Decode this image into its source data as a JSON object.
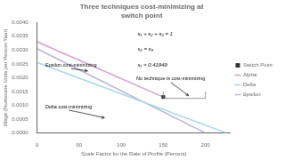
{
  "chart_data": {
    "type": "line",
    "title": "Three techniques cost-minimizing at\nswitch point",
    "xlabel": "Scale Factor for the Rate of Profits (Percent)",
    "ylabel": "Wage (Numeraire Units per Person-Year)",
    "annotations": [
      "s₁ + s₂ + s₃ = 1",
      "s₂ = s₃",
      "s₁ ≈ 0.41949",
      "Epsilon cost-minimizing",
      "Delta cost-minimizing",
      "No technique is cost-minimizing"
    ],
    "series": [
      {
        "name": "Alpha",
        "color": "#d4a0c8",
        "x": [
          0,
          150
        ],
        "values": [
          0.0033,
          0.0013
        ]
      },
      {
        "name": "Delta",
        "color": "#a8d4e8",
        "x": [
          0,
          225
        ],
        "values": [
          0.00255,
          0
        ]
      },
      {
        "name": "Epsilon",
        "color": "#b8b4d8",
        "x": [
          0,
          200
        ],
        "values": [
          0.00305,
          0
        ]
      },
      {
        "name": "Switch Point",
        "type": "scatter",
        "marker": "square",
        "color": "#303030",
        "x": [
          150
        ],
        "values": [
          0.0013
        ]
      }
    ],
    "xlim": [
      0,
      230
    ],
    "ylim": [
      0,
      0.004
    ],
    "xticks": [
      0,
      50,
      100,
      150,
      200
    ],
    "yticks": [
      {
        "value": 0,
        "label": "0.0000"
      },
      0.0005,
      {
        "value": 0.001,
        "label": "0.0010"
      },
      0.0015,
      {
        "value": 0.002,
        "label": "0.0020"
      },
      0.0025,
      {
        "value": 0.003,
        "label": "0.0030"
      },
      0.0035,
      {
        "value": 0.004,
        "label": "0.0040"
      }
    ],
    "grid": false,
    "legend": "right"
  }
}
